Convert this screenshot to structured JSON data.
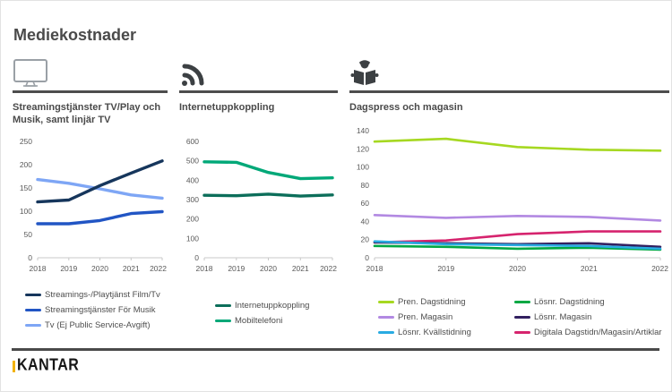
{
  "page": {
    "title": "Mediekostnader",
    "brand_logo": "KANTAR"
  },
  "chart_data": [
    {
      "type": "line",
      "icon": "tv-icon",
      "title": "Streamingstjänster TV/Play och Musik, samt linjär TV",
      "x": [
        "2018",
        "2019",
        "2020",
        "2021",
        "2022"
      ],
      "ylim": [
        0,
        250
      ],
      "yticks": [
        0,
        50,
        100,
        150,
        200,
        250
      ],
      "grid": "off",
      "legend_position": "bottom",
      "series": [
        {
          "name": "Streamings-/Playtjänst Film/Tv",
          "color": "#16365c",
          "values": [
            120,
            124,
            155,
            182,
            208
          ]
        },
        {
          "name": "Streamingstjänster För Musik",
          "color": "#2155c4",
          "values": [
            73,
            73,
            80,
            95,
            99
          ]
        },
        {
          "name": "Tv (Ej Public Service-Avgift)",
          "color": "#7ea6f5",
          "values": [
            168,
            160,
            148,
            135,
            128
          ]
        }
      ]
    },
    {
      "type": "line",
      "icon": "wifi-icon",
      "title": "Internetuppkoppling",
      "x": [
        "2018",
        "2019",
        "2020",
        "2021",
        "2022"
      ],
      "ylim": [
        0,
        600
      ],
      "yticks": [
        0,
        100,
        200,
        300,
        400,
        500,
        600
      ],
      "grid": "off",
      "legend_position": "bottom",
      "series": [
        {
          "name": "Internetuppkoppling",
          "color": "#0c6e5a",
          "values": [
            322,
            320,
            328,
            318,
            324
          ]
        },
        {
          "name": "Mobiltelefoni",
          "color": "#00a878",
          "values": [
            495,
            492,
            440,
            408,
            412
          ]
        }
      ]
    },
    {
      "type": "line",
      "icon": "reader-icon",
      "title": "Dagspress och magasin",
      "x": [
        "2018",
        "2019",
        "2020",
        "2021",
        "2022"
      ],
      "ylim": [
        0,
        140
      ],
      "yticks": [
        0,
        20,
        40,
        60,
        80,
        100,
        120,
        140
      ],
      "grid": "off",
      "legend_position": "bottom-two-columns",
      "series": [
        {
          "name": "Pren. Dagstidning",
          "color": "#a6d821",
          "values": [
            128,
            131,
            122,
            119,
            118
          ]
        },
        {
          "name": "Pren. Magasin",
          "color": "#b289e2",
          "values": [
            47,
            44,
            46,
            45,
            41
          ]
        },
        {
          "name": "Lösnr. Kvällstidning",
          "color": "#29abe2",
          "values": [
            18,
            15,
            14,
            13,
            10
          ]
        },
        {
          "name": "Lösnr. Dagstidning",
          "color": "#00a843",
          "values": [
            13,
            12,
            10,
            11,
            9
          ]
        },
        {
          "name": "Lösnr. Magasin",
          "color": "#322060",
          "values": [
            17,
            16,
            15,
            16,
            12
          ]
        },
        {
          "name": "Digitala Dagstidn/Magasin/Artiklar",
          "color": "#d6246e",
          "values": [
            17,
            19,
            26,
            29,
            29
          ]
        }
      ]
    }
  ]
}
